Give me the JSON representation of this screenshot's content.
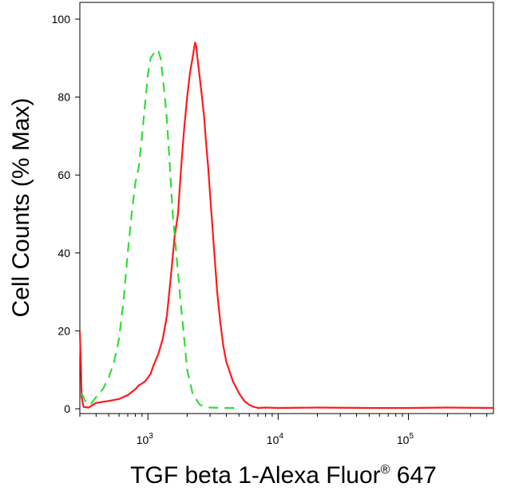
{
  "chart_data": {
    "type": "line",
    "title": "",
    "xlabel": "TGF beta 1-Alexa Fluor® 647",
    "xlabel_main": "TGF beta 1-Alexa Fluor",
    "xlabel_mark": "®",
    "xlabel_tail": " 647",
    "ylabel": "Cell Counts (% Max)",
    "xscale": "log",
    "xlim": [
      300,
      450000
    ],
    "ylim": [
      0,
      103
    ],
    "x_ticks": [
      {
        "base": "10",
        "exp": "3",
        "value": 1000
      },
      {
        "base": "10",
        "exp": "4",
        "value": 10000
      },
      {
        "base": "10",
        "exp": "5",
        "value": 100000
      }
    ],
    "y_ticks": [
      "0",
      "20",
      "40",
      "60",
      "80",
      "100"
    ],
    "grid": false,
    "legend": "none",
    "series": [
      {
        "color": "#ff1a1a",
        "style": "solid",
        "x": [
          300,
          305,
          310,
          320,
          350,
          400,
          500,
          600,
          700,
          800,
          850,
          900,
          950,
          1000,
          1050,
          1100,
          1200,
          1300,
          1400,
          1500,
          1600,
          1700,
          1800,
          1900,
          2000,
          2100,
          2200,
          2250,
          2300,
          2350,
          2400,
          2500,
          2600,
          2700,
          2800,
          2900,
          3000,
          3200,
          3400,
          3600,
          3800,
          4000,
          4500,
          5000,
          5500,
          6000,
          6500,
          7000,
          8000,
          10000,
          20000,
          50000,
          100000,
          200000,
          450000
        ],
        "y": [
          20,
          12,
          3,
          0.5,
          0.3,
          1.5,
          2,
          2.5,
          3.5,
          5,
          6,
          6.5,
          7,
          8,
          9,
          11,
          14,
          18,
          24,
          34,
          44,
          50,
          62,
          72,
          80,
          86,
          90,
          92,
          94,
          93,
          90,
          85,
          80,
          75,
          68,
          62,
          55,
          42,
          30,
          22,
          16,
          12,
          7,
          4,
          2,
          1,
          0.5,
          0.2,
          0.3,
          0.2,
          0.3,
          0.2,
          0.2,
          0.3,
          0.2
        ]
      },
      {
        "color": "#33dd33",
        "style": "dashed",
        "x": [
          310,
          330,
          360,
          400,
          450,
          500,
          550,
          600,
          650,
          700,
          750,
          800,
          850,
          900,
          950,
          1000,
          1050,
          1100,
          1150,
          1200,
          1250,
          1300,
          1350,
          1400,
          1450,
          1500,
          1550,
          1600,
          1700,
          1800,
          1900,
          2000,
          2200,
          2500,
          3000,
          4000,
          5000
        ],
        "y": [
          4,
          2,
          1,
          3,
          5,
          8,
          12,
          18,
          28,
          40,
          50,
          58,
          62,
          70,
          78,
          86,
          90,
          91,
          92,
          92,
          90,
          85,
          80,
          74,
          66,
          58,
          50,
          45,
          35,
          26,
          18,
          10,
          4,
          1,
          0.3,
          0.2,
          0.2
        ]
      }
    ]
  }
}
